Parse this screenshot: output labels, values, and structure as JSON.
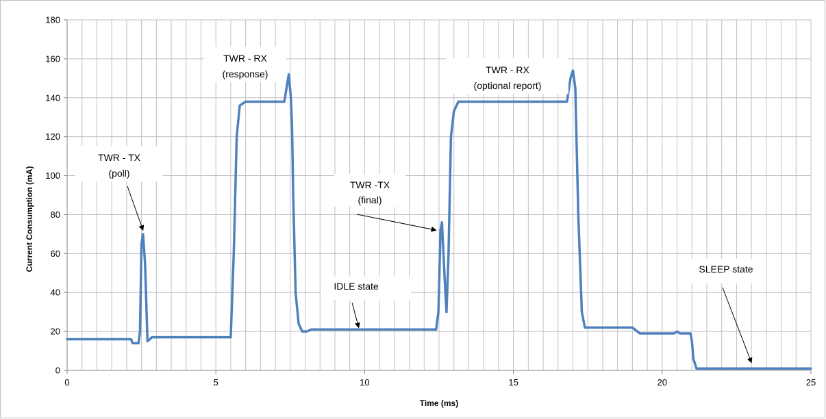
{
  "chart_data": {
    "type": "line",
    "title": "",
    "xlabel": "Time (ms)",
    "ylabel": "Current Consumption (mA)",
    "xlim": [
      0,
      25
    ],
    "ylim": [
      0,
      180
    ],
    "xticks": [
      0,
      5,
      10,
      15,
      20,
      25
    ],
    "yticks": [
      0,
      20,
      40,
      60,
      80,
      100,
      120,
      140,
      160,
      180
    ],
    "grid": true,
    "legend": "none",
    "series_color": "#4F81BD",
    "series": [
      {
        "x": [
          0,
          2.15,
          2.2,
          2.4,
          2.45,
          2.5,
          2.55,
          2.62,
          2.7,
          2.78,
          2.85,
          2.95,
          3.5,
          5.5,
          5.6,
          5.7,
          5.8,
          6.0,
          7.3,
          7.45,
          7.52,
          7.56,
          7.6,
          7.68,
          7.78,
          7.9,
          8.05,
          8.2,
          12.4,
          12.48,
          12.55,
          12.6,
          12.68,
          12.75,
          12.82,
          12.9,
          13.0,
          13.15,
          13.4,
          16.8,
          16.92,
          17.0,
          17.08,
          17.18,
          17.3,
          17.4,
          17.55,
          19.0,
          19.25,
          20.4,
          20.5,
          20.6,
          20.95,
          21.0,
          21.05,
          21.15,
          21.3,
          25.0
        ],
        "y": [
          16,
          16,
          14,
          14,
          20,
          65,
          70,
          55,
          15,
          16,
          17,
          17,
          17,
          17,
          60,
          120,
          136,
          138,
          138,
          152,
          140,
          125,
          90,
          40,
          24,
          20,
          20,
          21,
          21,
          30,
          72,
          76,
          50,
          30,
          60,
          120,
          133,
          138,
          138,
          138,
          150,
          154,
          145,
          80,
          30,
          22,
          22,
          22,
          19,
          19,
          20,
          19,
          19,
          15,
          6,
          1,
          1,
          1
        ]
      }
    ],
    "annotations": [
      {
        "lines": [
          "TWR - TX",
          "(poll)"
        ],
        "point": [
          2.55,
          72
        ]
      },
      {
        "lines": [
          "TWR - RX",
          "(response)"
        ],
        "point": null
      },
      {
        "lines": [
          "IDLE state"
        ],
        "point": [
          9.8,
          22
        ]
      },
      {
        "lines": [
          "TWR -TX",
          "(final)"
        ],
        "point": [
          12.4,
          72
        ]
      },
      {
        "lines": [
          "TWR - RX",
          "(optional report)"
        ],
        "point": null
      },
      {
        "lines": [
          "SLEEP state"
        ],
        "point": [
          23.0,
          4
        ]
      }
    ]
  }
}
